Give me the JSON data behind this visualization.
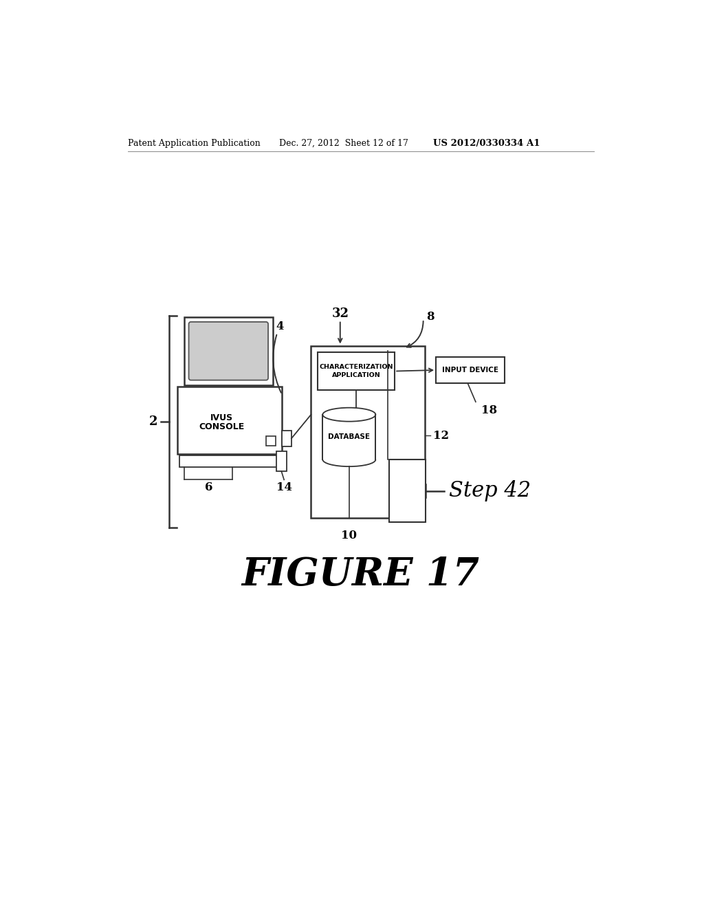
{
  "bg_color": "#ffffff",
  "header_left": "Patent Application Publication",
  "header_center": "Dec. 27, 2012  Sheet 12 of 17",
  "header_right": "US 2012/0330334 A1",
  "figure_label": "FIGURE 17",
  "label_2": "2",
  "label_4": "4",
  "label_6": "6",
  "label_8": "8",
  "label_10": "10",
  "label_12": "12",
  "label_14": "14",
  "label_18": "18",
  "label_32": "32",
  "step_label": "Step 42",
  "text_ivus_line1": "IVUS",
  "text_ivus_line2": "CONSOLE",
  "text_char_app": "CHARACTERIZATION\nAPPLICATION",
  "text_database": "DATABASE",
  "text_input": "INPUT DEVICE",
  "line_color": "#333333",
  "text_color": "#000000"
}
